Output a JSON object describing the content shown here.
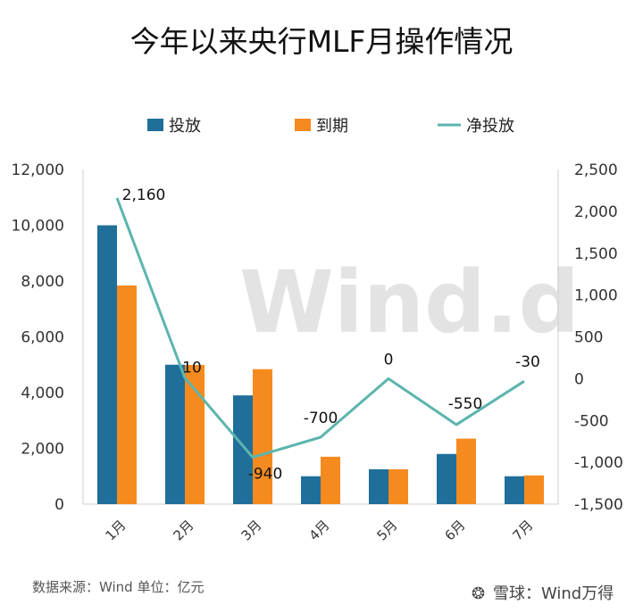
{
  "chart_data": {
    "type": "bar",
    "title": "今年以来央行MLF月操作情况",
    "categories": [
      "1月",
      "2月",
      "3月",
      "4月",
      "5月",
      "6月",
      "7月"
    ],
    "series": [
      {
        "name": "投放",
        "type": "bar",
        "axis": "left",
        "color": "#1f6f9a",
        "values": [
          10000,
          5000,
          3900,
          1000,
          1250,
          1800,
          1000
        ]
      },
      {
        "name": "到期",
        "type": "bar",
        "axis": "left",
        "color": "#f58a1f",
        "values": [
          7840,
          4990,
          4840,
          1700,
          1250,
          2350,
          1030
        ]
      },
      {
        "name": "净投放",
        "type": "line",
        "axis": "right",
        "color": "#5cb5ad",
        "values": [
          2160,
          10,
          -940,
          -700,
          0,
          -550,
          -30
        ]
      }
    ],
    "data_labels": [
      "2,160",
      "10",
      "-940",
      "-700",
      "0",
      "-550",
      "-30"
    ],
    "ylim_left": [
      0,
      12000
    ],
    "ylim_right": [
      -1500,
      2500
    ],
    "left_ticks": [
      0,
      2000,
      4000,
      6000,
      8000,
      10000,
      12000
    ],
    "left_tick_labels": [
      "0",
      "2,000",
      "4,000",
      "6,000",
      "8,000",
      "10,000",
      "12,000"
    ],
    "right_ticks": [
      -1500,
      -1000,
      -500,
      0,
      500,
      1000,
      1500,
      2000,
      2500
    ],
    "right_tick_labels": [
      "-1,500",
      "-1,000",
      "-500",
      "0",
      "500",
      "1,000",
      "1,500",
      "2,000",
      "2,500"
    ],
    "legend_position": "top",
    "grid": false
  },
  "source_note": "数据来源：Wind   单位：亿元",
  "watermark": "Wind",
  "watermark_dot": ".d",
  "brand": {
    "icon_char": "❂",
    "name": "雪球：Wind万得"
  }
}
